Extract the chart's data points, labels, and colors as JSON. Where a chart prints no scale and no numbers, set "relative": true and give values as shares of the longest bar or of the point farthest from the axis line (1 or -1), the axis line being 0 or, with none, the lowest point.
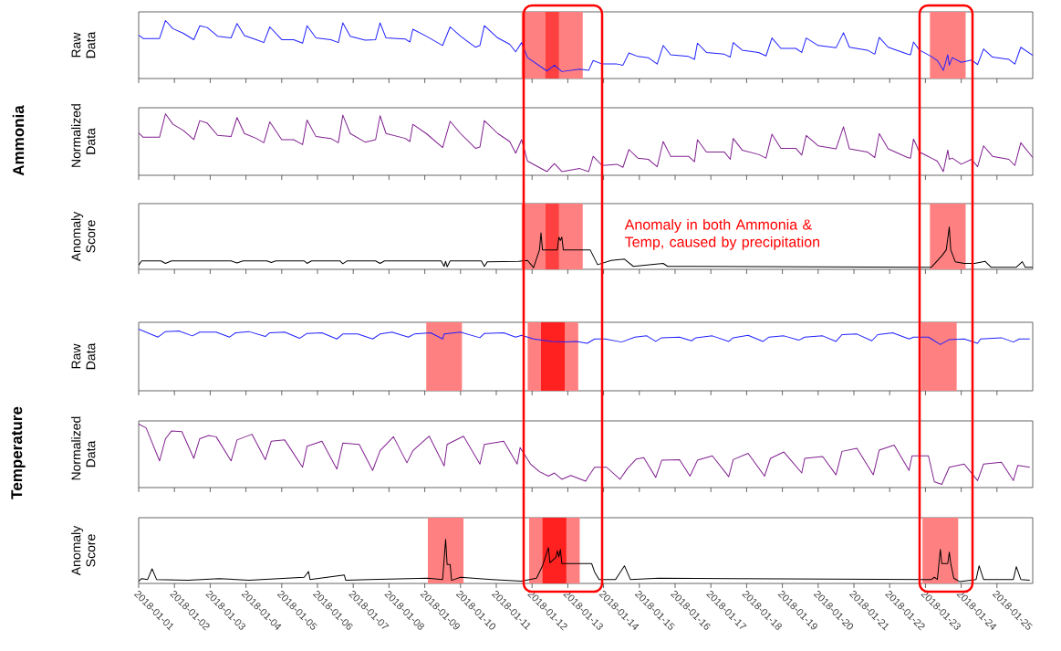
{
  "chart_data": [
    {
      "type": "other",
      "title": "Ammonia"
    },
    {
      "type": "line",
      "ylabel": "Raw Data",
      "color": "#2020ff",
      "relative": true,
      "tick_labels": false,
      "xlim": [
        "2018-01-01",
        "2018-01-26"
      ],
      "xticks": [
        "2018-01-01",
        "2018-01-02",
        "2018-01-03",
        "2018-01-04",
        "2018-01-05",
        "2018-01-06",
        "2018-01-07",
        "2018-01-08",
        "2018-01-09",
        "2018-01-10",
        "2018-01-11",
        "2018-01-12",
        "2018-01-13",
        "2018-01-14",
        "2018-01-15",
        "2018-01-16",
        "2018-01-17",
        "2018-01-18",
        "2018-01-19",
        "2018-01-20",
        "2018-01-21",
        "2018-01-22",
        "2018-01-23",
        "2018-01-24",
        "2018-01-25"
      ],
      "bands": [
        {
          "axis": "x",
          "from": "2018-01-11T17:00",
          "to": "2018-01-13T10:00",
          "color": "#ff8080"
        },
        {
          "axis": "x",
          "from": "2018-01-12T09:00",
          "to": "2018-01-12T18:00",
          "color": "#ff4040"
        },
        {
          "axis": "x",
          "from": "2018-01-23T03:00",
          "to": "2018-01-24T03:00",
          "color": "#ff8080"
        }
      ],
      "x": [
        "2018-01-01T00:00",
        "2018-01-01T03:00",
        "2018-01-01T14:00",
        "2018-01-01T18:00",
        "2018-01-01T23:00",
        "2018-01-02T06:00",
        "2018-01-02T13:00",
        "2018-01-02T17:00",
        "2018-01-02T22:00",
        "2018-01-03T05:00",
        "2018-01-03T14:00",
        "2018-01-03T18:00",
        "2018-01-03T23:00",
        "2018-01-04T07:00",
        "2018-01-04T12:00",
        "2018-01-04T16:00",
        "2018-01-05T00:00",
        "2018-01-05T08:00",
        "2018-01-05T14:00",
        "2018-01-05T17:00",
        "2018-01-05T23:00",
        "2018-01-06T09:00",
        "2018-01-06T14:00",
        "2018-01-06T17:00",
        "2018-01-06T22:00",
        "2018-01-07T08:00",
        "2018-01-07T15:00",
        "2018-01-07T18:00",
        "2018-01-07T22:00",
        "2018-01-08T11:00",
        "2018-01-08T14:00",
        "2018-01-08T16:00",
        "2018-01-09T01:00",
        "2018-01-09T12:00",
        "2018-01-09T17:00",
        "2018-01-10T00:00",
        "2018-01-10T10:00",
        "2018-01-10T13:00",
        "2018-01-10T16:00",
        "2018-01-11T01:00",
        "2018-01-11T09:00",
        "2018-01-11T13:00",
        "2018-01-11T17:00",
        "2018-01-11T21:00",
        "2018-01-12T10:00",
        "2018-01-12T15:00",
        "2018-01-12T20:00",
        "2018-01-13T08:00",
        "2018-01-13T14:00",
        "2018-01-13T17:00",
        "2018-01-13T23:00",
        "2018-01-14T09:00",
        "2018-01-14T13:00",
        "2018-01-14T17:00",
        "2018-01-14T23:00",
        "2018-01-15T06:00",
        "2018-01-15T12:00",
        "2018-01-15T16:00",
        "2018-01-15T21:00",
        "2018-01-16T09:00",
        "2018-01-16T13:00",
        "2018-01-16T15:00",
        "2018-01-16T21:00",
        "2018-01-17T09:00",
        "2018-01-17T13:00",
        "2018-01-17T15:00",
        "2018-01-17T21:00",
        "2018-01-18T08:00",
        "2018-01-18T13:00",
        "2018-01-18T17:00",
        "2018-01-18T23:00",
        "2018-01-19T09:00",
        "2018-01-19T13:00",
        "2018-01-19T16:00",
        "2018-01-20T00:00",
        "2018-01-20T12:00",
        "2018-01-20T17:00",
        "2018-01-20T21:00",
        "2018-01-21T09:00",
        "2018-01-21T14:00",
        "2018-01-21T17:00",
        "2018-01-21T23:00",
        "2018-01-22T12:00",
        "2018-01-22T14:00",
        "2018-01-22T16:00",
        "2018-01-22T20:00",
        "2018-01-23T04:00",
        "2018-01-23T08:00",
        "2018-01-23T12:00",
        "2018-01-23T15:00",
        "2018-01-23T16:00",
        "2018-01-23T18:00",
        "2018-01-24T00:00",
        "2018-01-24T07:00",
        "2018-01-24T11:00",
        "2018-01-24T15:00",
        "2018-01-24T21:00",
        "2018-01-25T08:00",
        "2018-01-25T12:00",
        "2018-01-25T16:00",
        "2018-01-26T00:00"
      ],
      "values": [
        0.75,
        0.69,
        0.69,
        1.0,
        0.86,
        0.78,
        0.67,
        0.91,
        0.88,
        0.73,
        0.7,
        0.95,
        0.74,
        0.67,
        0.62,
        0.89,
        0.67,
        0.67,
        0.61,
        0.91,
        0.7,
        0.67,
        0.62,
        0.96,
        0.73,
        0.66,
        0.67,
        0.96,
        0.7,
        0.68,
        0.63,
        0.85,
        0.73,
        0.57,
        0.89,
        0.73,
        0.54,
        0.57,
        0.91,
        0.7,
        0.59,
        0.46,
        0.62,
        0.36,
        0.13,
        0.23,
        0.12,
        0.16,
        0.14,
        0.31,
        0.25,
        0.25,
        0.23,
        0.44,
        0.38,
        0.36,
        0.25,
        0.57,
        0.41,
        0.38,
        0.33,
        0.61,
        0.45,
        0.42,
        0.37,
        0.62,
        0.49,
        0.45,
        0.39,
        0.7,
        0.52,
        0.52,
        0.45,
        0.7,
        0.57,
        0.53,
        0.79,
        0.54,
        0.49,
        0.42,
        0.71,
        0.54,
        0.42,
        0.41,
        0.63,
        0.49,
        0.38,
        0.31,
        0.14,
        0.41,
        0.23,
        0.36,
        0.28,
        0.32,
        0.24,
        0.51,
        0.37,
        0.33,
        0.25,
        0.54,
        0.4
      ]
    },
    {
      "type": "line",
      "ylabel": "Normalized Data",
      "color": "#80208f",
      "relative": true,
      "tick_labels": false,
      "xlim": [
        "2018-01-01",
        "2018-01-26"
      ],
      "xticks": [
        "2018-01-01",
        "2018-01-02",
        "2018-01-03",
        "2018-01-04",
        "2018-01-05",
        "2018-01-06",
        "2018-01-07",
        "2018-01-08",
        "2018-01-09",
        "2018-01-10",
        "2018-01-11",
        "2018-01-12",
        "2018-01-13",
        "2018-01-14",
        "2018-01-15",
        "2018-01-16",
        "2018-01-17",
        "2018-01-18",
        "2018-01-19",
        "2018-01-20",
        "2018-01-21",
        "2018-01-22",
        "2018-01-23",
        "2018-01-24",
        "2018-01-25"
      ],
      "x": [
        "2018-01-01T00:00",
        "2018-01-01T03:00",
        "2018-01-01T14:00",
        "2018-01-01T18:00",
        "2018-01-01T23:00",
        "2018-01-02T06:00",
        "2018-01-02T13:00",
        "2018-01-02T17:00",
        "2018-01-02T22:00",
        "2018-01-03T05:00",
        "2018-01-03T14:00",
        "2018-01-03T18:00",
        "2018-01-03T23:00",
        "2018-01-04T07:00",
        "2018-01-04T12:00",
        "2018-01-04T16:00",
        "2018-01-05T00:00",
        "2018-01-05T08:00",
        "2018-01-05T14:00",
        "2018-01-05T17:00",
        "2018-01-05T23:00",
        "2018-01-06T09:00",
        "2018-01-06T14:00",
        "2018-01-06T17:00",
        "2018-01-06T22:00",
        "2018-01-07T08:00",
        "2018-01-07T15:00",
        "2018-01-07T18:00",
        "2018-01-07T22:00",
        "2018-01-08T11:00",
        "2018-01-08T14:00",
        "2018-01-08T16:00",
        "2018-01-09T01:00",
        "2018-01-09T12:00",
        "2018-01-09T17:00",
        "2018-01-10T00:00",
        "2018-01-10T10:00",
        "2018-01-10T13:00",
        "2018-01-10T16:00",
        "2018-01-11T01:00",
        "2018-01-11T09:00",
        "2018-01-11T13:00",
        "2018-01-11T17:00",
        "2018-01-11T21:00",
        "2018-01-12T10:00",
        "2018-01-12T15:00",
        "2018-01-12T20:00",
        "2018-01-13T08:00",
        "2018-01-13T14:00",
        "2018-01-13T17:00",
        "2018-01-13T23:00",
        "2018-01-14T09:00",
        "2018-01-14T13:00",
        "2018-01-14T17:00",
        "2018-01-14T23:00",
        "2018-01-15T06:00",
        "2018-01-15T12:00",
        "2018-01-15T16:00",
        "2018-01-15T21:00",
        "2018-01-16T09:00",
        "2018-01-16T13:00",
        "2018-01-16T15:00",
        "2018-01-16T21:00",
        "2018-01-17T09:00",
        "2018-01-17T13:00",
        "2018-01-17T15:00",
        "2018-01-17T21:00",
        "2018-01-18T08:00",
        "2018-01-18T13:00",
        "2018-01-18T17:00",
        "2018-01-18T23:00",
        "2018-01-19T09:00",
        "2018-01-19T13:00",
        "2018-01-19T16:00",
        "2018-01-20T00:00",
        "2018-01-20T12:00",
        "2018-01-20T17:00",
        "2018-01-20T21:00",
        "2018-01-21T09:00",
        "2018-01-21T14:00",
        "2018-01-21T17:00",
        "2018-01-21T23:00",
        "2018-01-22T12:00",
        "2018-01-22T14:00",
        "2018-01-22T16:00",
        "2018-01-22T20:00",
        "2018-01-23T04:00",
        "2018-01-23T08:00",
        "2018-01-23T12:00",
        "2018-01-23T15:00",
        "2018-01-23T16:00",
        "2018-01-23T18:00",
        "2018-01-24T00:00",
        "2018-01-24T07:00",
        "2018-01-24T11:00",
        "2018-01-24T15:00",
        "2018-01-24T21:00",
        "2018-01-25T08:00",
        "2018-01-25T12:00",
        "2018-01-25T16:00",
        "2018-01-26T00:00"
      ],
      "values": [
        0.69,
        0.62,
        0.62,
        1.0,
        0.83,
        0.73,
        0.58,
        0.89,
        0.85,
        0.65,
        0.63,
        0.94,
        0.68,
        0.6,
        0.53,
        0.87,
        0.58,
        0.58,
        0.5,
        0.9,
        0.63,
        0.6,
        0.53,
        0.98,
        0.68,
        0.54,
        0.58,
        0.97,
        0.68,
        0.6,
        0.55,
        0.83,
        0.68,
        0.45,
        0.88,
        0.68,
        0.44,
        0.46,
        0.89,
        0.68,
        0.55,
        0.36,
        0.58,
        0.23,
        0.06,
        0.19,
        0.06,
        0.11,
        0.06,
        0.31,
        0.16,
        0.18,
        0.13,
        0.42,
        0.28,
        0.26,
        0.14,
        0.55,
        0.31,
        0.31,
        0.22,
        0.58,
        0.38,
        0.38,
        0.26,
        0.6,
        0.41,
        0.34,
        0.28,
        0.67,
        0.44,
        0.44,
        0.33,
        0.65,
        0.48,
        0.43,
        0.79,
        0.43,
        0.38,
        0.29,
        0.68,
        0.43,
        0.29,
        0.28,
        0.59,
        0.38,
        0.28,
        0.23,
        0.06,
        0.41,
        0.26,
        0.28,
        0.18,
        0.26,
        0.14,
        0.48,
        0.31,
        0.26,
        0.16,
        0.53,
        0.29
      ]
    },
    {
      "type": "line",
      "ylabel": "Anomaly Score",
      "color": "#000000",
      "relative": true,
      "tick_labels": false,
      "xlim": [
        "2018-01-01",
        "2018-01-26"
      ],
      "xticks": [
        "2018-01-01",
        "2018-01-02",
        "2018-01-03",
        "2018-01-04",
        "2018-01-05",
        "2018-01-06",
        "2018-01-07",
        "2018-01-08",
        "2018-01-09",
        "2018-01-10",
        "2018-01-11",
        "2018-01-12",
        "2018-01-13",
        "2018-01-14",
        "2018-01-15",
        "2018-01-16",
        "2018-01-17",
        "2018-01-18",
        "2018-01-19",
        "2018-01-20",
        "2018-01-21",
        "2018-01-22",
        "2018-01-23",
        "2018-01-24",
        "2018-01-25"
      ],
      "annotations": [
        "Anomaly in both Ammonia & Temp, caused by precipitation"
      ],
      "bands": [
        {
          "axis": "x",
          "from": "2018-01-11T17:00",
          "to": "2018-01-13T10:00",
          "color": "#ff8080"
        },
        {
          "axis": "x",
          "from": "2018-01-12T09:00",
          "to": "2018-01-12T18:00",
          "color": "#ff4040"
        },
        {
          "axis": "x",
          "from": "2018-01-23T03:00",
          "to": "2018-01-24T03:00",
          "color": "#ff8080"
        }
      ],
      "x": [
        "2018-01-01T00:00",
        "2018-01-01T02:00",
        "2018-01-01T15:00",
        "2018-01-01T18:00",
        "2018-01-01T22:00",
        "2018-01-03T14:00",
        "2018-01-03T18:00",
        "2018-01-03T22:00",
        "2018-01-04T14:00",
        "2018-01-04T17:00",
        "2018-01-04T20:00",
        "2018-01-05T15:00",
        "2018-01-05T17:00",
        "2018-01-05T20:00",
        "2018-01-06T15:00",
        "2018-01-06T17:00",
        "2018-01-06T20:00",
        "2018-01-07T15:00",
        "2018-01-07T18:00",
        "2018-01-07T21:00",
        "2018-01-09T11:00",
        "2018-01-09T13:00",
        "2018-01-09T14:00",
        "2018-01-09T15:00",
        "2018-01-09T17:00",
        "2018-01-10T14:00",
        "2018-01-10T16:00",
        "2018-01-10T18:00",
        "2018-01-11T15:00",
        "2018-01-11T21:00",
        "2018-01-12T01:00",
        "2018-01-12T05:00",
        "2018-01-12T06:00",
        "2018-01-12T07:00",
        "2018-01-12T17:00",
        "2018-01-12T18:00",
        "2018-01-12T19:00",
        "2018-01-12T20:00",
        "2018-01-12T21:00",
        "2018-01-13T15:00",
        "2018-01-13T20:00",
        "2018-01-14T05:00",
        "2018-01-14T14:00",
        "2018-01-14T20:00",
        "2018-01-15T16:00",
        "2018-01-15T19:00",
        "2018-01-23T04:00",
        "2018-01-23T11:00",
        "2018-01-23T14:00",
        "2018-01-23T16:00",
        "2018-01-23T17:00",
        "2018-01-23T20:00",
        "2018-01-24T02:00",
        "2018-01-24T09:00",
        "2018-01-24T16:00",
        "2018-01-24T20:00",
        "2018-01-25T13:00",
        "2018-01-25T17:00",
        "2018-01-25T19:00",
        "2018-01-26T00:00"
      ],
      "values": [
        0.1,
        0.2,
        0.2,
        0.14,
        0.2,
        0.2,
        0.15,
        0.2,
        0.2,
        0.16,
        0.2,
        0.2,
        0.14,
        0.2,
        0.2,
        0.13,
        0.2,
        0.2,
        0.14,
        0.2,
        0.2,
        0.07,
        0.19,
        0.06,
        0.2,
        0.2,
        0.07,
        0.18,
        0.19,
        0.21,
        0.04,
        0.46,
        0.86,
        0.46,
        0.46,
        0.76,
        0.68,
        0.76,
        0.46,
        0.46,
        0.11,
        0.21,
        0.24,
        0.07,
        0.14,
        0.07,
        0.05,
        0.32,
        0.46,
        1.0,
        0.46,
        0.18,
        0.14,
        0.14,
        0.19,
        0.05,
        0.05,
        0.18,
        0.05,
        0.05
      ]
    },
    {
      "type": "other",
      "title": "Temperature"
    },
    {
      "type": "line",
      "ylabel": "Raw Data",
      "color": "#2020ff",
      "relative": true,
      "tick_labels": false,
      "xlim": [
        "2018-01-01",
        "2018-01-26"
      ],
      "xticks": [
        "2018-01-01",
        "2018-01-02",
        "2018-01-03",
        "2018-01-04",
        "2018-01-05",
        "2018-01-06",
        "2018-01-07",
        "2018-01-08",
        "2018-01-09",
        "2018-01-10",
        "2018-01-11",
        "2018-01-12",
        "2018-01-13",
        "2018-01-14",
        "2018-01-15",
        "2018-01-16",
        "2018-01-17",
        "2018-01-18",
        "2018-01-19",
        "2018-01-20",
        "2018-01-21",
        "2018-01-22",
        "2018-01-23",
        "2018-01-24",
        "2018-01-25"
      ],
      "bands": [
        {
          "axis": "x",
          "from": "2018-01-09T01:00",
          "to": "2018-01-10T01:00",
          "color": "#ff8080"
        },
        {
          "axis": "x",
          "from": "2018-01-11T21:00",
          "to": "2018-01-13T07:00",
          "color": "#ff8080"
        },
        {
          "axis": "x",
          "from": "2018-01-12T06:00",
          "to": "2018-01-12T22:00",
          "color": "#ff2020"
        },
        {
          "axis": "x",
          "from": "2018-01-22T21:00",
          "to": "2018-01-23T21:00",
          "color": "#ff8080"
        }
      ],
      "x": [
        "2018-01-01T00:00",
        "2018-01-01T13:00",
        "2018-01-01T18:00",
        "2018-01-02T03:00",
        "2018-01-02T12:00",
        "2018-01-02T17:00",
        "2018-01-03T04:00",
        "2018-01-03T13:00",
        "2018-01-03T17:00",
        "2018-01-04T02:00",
        "2018-01-04T13:00",
        "2018-01-04T16:00",
        "2018-01-05T02:00",
        "2018-01-05T12:00",
        "2018-01-05T17:00",
        "2018-01-06T03:00",
        "2018-01-06T13:00",
        "2018-01-06T17:00",
        "2018-01-07T03:00",
        "2018-01-07T13:00",
        "2018-01-07T18:00",
        "2018-01-08T02:00",
        "2018-01-08T13:00",
        "2018-01-08T17:00",
        "2018-01-09T04:00",
        "2018-01-09T12:00",
        "2018-01-09T13:00",
        "2018-01-10T00:00",
        "2018-01-10T13:00",
        "2018-01-10T16:00",
        "2018-01-11T05:00",
        "2018-01-11T13:00",
        "2018-01-11T17:00",
        "2018-01-12T01:00",
        "2018-01-12T13:00",
        "2018-01-12T22:00",
        "2018-01-13T06:00",
        "2018-01-13T13:00",
        "2018-01-13T18:00",
        "2018-01-14T01:00",
        "2018-01-14T12:00",
        "2018-01-14T21:00",
        "2018-01-15T05:00",
        "2018-01-15T11:00",
        "2018-01-15T15:00",
        "2018-01-16T03:00",
        "2018-01-16T11:00",
        "2018-01-16T14:00",
        "2018-01-17T01:00",
        "2018-01-17T12:00",
        "2018-01-17T15:00",
        "2018-01-18T01:00",
        "2018-01-18T11:00",
        "2018-01-18T15:00",
        "2018-01-19T01:00",
        "2018-01-19T11:00",
        "2018-01-19T15:00",
        "2018-01-20T03:00",
        "2018-01-20T12:00",
        "2018-01-20T16:00",
        "2018-01-21T02:00",
        "2018-01-21T12:00",
        "2018-01-21T16:00",
        "2018-01-22T02:00",
        "2018-01-22T13:00",
        "2018-01-22T16:00",
        "2018-01-23T02:00",
        "2018-01-23T10:00",
        "2018-01-23T16:00",
        "2018-01-24T02:00",
        "2018-01-24T11:00",
        "2018-01-24T13:00",
        "2018-01-25T03:00",
        "2018-01-25T11:00",
        "2018-01-25T15:00",
        "2018-01-25T22:00"
      ],
      "values": [
        1.0,
        0.87,
        0.96,
        0.97,
        0.89,
        0.95,
        0.95,
        0.87,
        0.94,
        0.96,
        0.88,
        0.94,
        0.95,
        0.85,
        0.93,
        0.94,
        0.84,
        0.92,
        0.92,
        0.84,
        0.92,
        0.95,
        0.87,
        0.92,
        0.94,
        0.84,
        0.92,
        0.95,
        0.86,
        0.93,
        0.94,
        0.87,
        0.9,
        0.84,
        0.8,
        0.79,
        0.8,
        0.77,
        0.84,
        0.84,
        0.79,
        0.87,
        0.89,
        0.8,
        0.86,
        0.87,
        0.81,
        0.86,
        0.89,
        0.8,
        0.86,
        0.9,
        0.8,
        0.87,
        0.89,
        0.82,
        0.87,
        0.89,
        0.8,
        0.91,
        0.92,
        0.81,
        0.91,
        0.94,
        0.84,
        0.87,
        0.87,
        0.75,
        0.83,
        0.84,
        0.77,
        0.84,
        0.86,
        0.79,
        0.84,
        0.84
      ]
    },
    {
      "type": "line",
      "ylabel": "Normalized Data",
      "color": "#80208f",
      "relative": true,
      "tick_labels": false,
      "xlim": [
        "2018-01-01",
        "2018-01-26"
      ],
      "xticks": [
        "2018-01-01",
        "2018-01-02",
        "2018-01-03",
        "2018-01-04",
        "2018-01-05",
        "2018-01-06",
        "2018-01-07",
        "2018-01-08",
        "2018-01-09",
        "2018-01-10",
        "2018-01-11",
        "2018-01-12",
        "2018-01-13",
        "2018-01-14",
        "2018-01-15",
        "2018-01-16",
        "2018-01-17",
        "2018-01-18",
        "2018-01-19",
        "2018-01-20",
        "2018-01-21",
        "2018-01-22",
        "2018-01-23",
        "2018-01-24",
        "2018-01-25"
      ],
      "x": [
        "2018-01-01T00:00",
        "2018-01-01T05:00",
        "2018-01-01T14:00",
        "2018-01-01T18:00",
        "2018-01-01T22:00",
        "2018-01-02T05:00",
        "2018-01-02T13:00",
        "2018-01-02T17:00",
        "2018-01-02T23:00",
        "2018-01-03T04:00",
        "2018-01-03T14:00",
        "2018-01-03T18:00",
        "2018-01-04T04:00",
        "2018-01-04T13:00",
        "2018-01-04T17:00",
        "2018-01-05T02:00",
        "2018-01-05T14:00",
        "2018-01-05T17:00",
        "2018-01-06T03:00",
        "2018-01-06T13:00",
        "2018-01-06T17:00",
        "2018-01-07T04:00",
        "2018-01-07T13:00",
        "2018-01-07T18:00",
        "2018-01-08T03:00",
        "2018-01-08T12:00",
        "2018-01-08T16:00",
        "2018-01-09T03:00",
        "2018-01-09T13:00",
        "2018-01-09T15:00",
        "2018-01-10T02:00",
        "2018-01-10T13:00",
        "2018-01-10T16:00",
        "2018-01-11T05:00",
        "2018-01-11T14:00",
        "2018-01-11T16:00",
        "2018-01-11T23:00",
        "2018-01-12T05:00",
        "2018-01-12T11:00",
        "2018-01-12T15:00",
        "2018-01-12T20:00",
        "2018-01-13T02:00",
        "2018-01-13T12:00",
        "2018-01-13T14:00",
        "2018-01-13T18:00",
        "2018-01-14T02:00",
        "2018-01-14T11:00",
        "2018-01-14T16:00",
        "2018-01-14T22:00",
        "2018-01-15T03:00",
        "2018-01-15T11:00",
        "2018-01-15T15:00",
        "2018-01-16T03:00",
        "2018-01-16T10:00",
        "2018-01-16T15:00",
        "2018-01-17T01:00",
        "2018-01-17T12:00",
        "2018-01-17T15:00",
        "2018-01-18T01:00",
        "2018-01-18T12:00",
        "2018-01-18T16:00",
        "2018-01-19T01:00",
        "2018-01-19T13:00",
        "2018-01-19T15:00",
        "2018-01-20T03:00",
        "2018-01-20T12:00",
        "2018-01-20T16:00",
        "2018-01-21T02:00",
        "2018-01-21T13:00",
        "2018-01-21T17:00",
        "2018-01-22T03:00",
        "2018-01-22T13:00",
        "2018-01-22T15:00",
        "2018-01-23T02:00",
        "2018-01-23T06:00",
        "2018-01-23T11:00",
        "2018-01-23T16:00",
        "2018-01-24T02:00",
        "2018-01-24T11:00",
        "2018-01-24T15:00",
        "2018-01-25T03:00",
        "2018-01-25T11:00",
        "2018-01-25T14:00",
        "2018-01-25T22:00"
      ],
      "values": [
        1.0,
        0.94,
        0.42,
        0.77,
        0.89,
        0.88,
        0.46,
        0.77,
        0.82,
        0.8,
        0.42,
        0.75,
        0.84,
        0.44,
        0.73,
        0.75,
        0.32,
        0.65,
        0.73,
        0.29,
        0.7,
        0.68,
        0.27,
        0.58,
        0.8,
        0.39,
        0.58,
        0.81,
        0.34,
        0.68,
        0.81,
        0.37,
        0.68,
        0.73,
        0.37,
        0.63,
        0.37,
        0.25,
        0.18,
        0.23,
        0.13,
        0.19,
        0.1,
        0.18,
        0.32,
        0.32,
        0.13,
        0.3,
        0.45,
        0.47,
        0.16,
        0.43,
        0.44,
        0.18,
        0.43,
        0.5,
        0.17,
        0.44,
        0.54,
        0.18,
        0.46,
        0.56,
        0.23,
        0.46,
        0.49,
        0.2,
        0.57,
        0.62,
        0.2,
        0.59,
        0.67,
        0.27,
        0.5,
        0.5,
        0.09,
        0.05,
        0.32,
        0.37,
        0.11,
        0.37,
        0.4,
        0.11,
        0.35,
        0.32
      ]
    },
    {
      "type": "line",
      "ylabel": "Anomaly Score",
      "color": "#000000",
      "relative": true,
      "tick_labels": "x",
      "xlim": [
        "2018-01-01",
        "2018-01-26"
      ],
      "xticks": [
        "2018-01-01",
        "2018-01-02",
        "2018-01-03",
        "2018-01-04",
        "2018-01-05",
        "2018-01-06",
        "2018-01-07",
        "2018-01-08",
        "2018-01-09",
        "2018-01-10",
        "2018-01-11",
        "2018-01-12",
        "2018-01-13",
        "2018-01-14",
        "2018-01-15",
        "2018-01-16",
        "2018-01-17",
        "2018-01-18",
        "2018-01-19",
        "2018-01-20",
        "2018-01-21",
        "2018-01-22",
        "2018-01-23",
        "2018-01-24",
        "2018-01-25"
      ],
      "bands": [
        {
          "axis": "x",
          "from": "2018-01-09T02:00",
          "to": "2018-01-10T02:00",
          "color": "#ff8080"
        },
        {
          "axis": "x",
          "from": "2018-01-11T22:00",
          "to": "2018-01-13T08:00",
          "color": "#ff8080"
        },
        {
          "axis": "x",
          "from": "2018-01-12T07:00",
          "to": "2018-01-12T23:00",
          "color": "#ff2020"
        },
        {
          "axis": "x",
          "from": "2018-01-22T22:00",
          "to": "2018-01-23T22:00",
          "color": "#ff8080"
        }
      ],
      "x": [
        "2018-01-01T00:00",
        "2018-01-01T02:00",
        "2018-01-01T06:00",
        "2018-01-01T09:00",
        "2018-01-01T12:00",
        "2018-01-02T09:00",
        "2018-01-03T06:00",
        "2018-01-04T02:00",
        "2018-01-05T15:00",
        "2018-01-05T18:00",
        "2018-01-05T19:00",
        "2018-01-06T18:00",
        "2018-01-06T19:00",
        "2018-01-07T11:00",
        "2018-01-09T02:00",
        "2018-01-09T12:00",
        "2018-01-09T14:00",
        "2018-01-09T15:00",
        "2018-01-09T17:00",
        "2018-01-09T18:00",
        "2018-01-10T00:00",
        "2018-01-10T21:00",
        "2018-01-11T17:00",
        "2018-01-12T03:00",
        "2018-01-12T07:00",
        "2018-01-12T11:00",
        "2018-01-12T12:00",
        "2018-01-12T16:00",
        "2018-01-12T17:00",
        "2018-01-12T18:00",
        "2018-01-12T19:00",
        "2018-01-12T20:00",
        "2018-01-13T16:00",
        "2018-01-13T18:00",
        "2018-01-13T21:00",
        "2018-01-14T08:00",
        "2018-01-14T14:00",
        "2018-01-14T18:00",
        "2018-01-15T13:00",
        "2018-01-17T16:00",
        "2018-01-23T04:00",
        "2018-01-23T06:00",
        "2018-01-23T08:00",
        "2018-01-23T10:00",
        "2018-01-23T11:00",
        "2018-01-23T15:00",
        "2018-01-23T16:00",
        "2018-01-23T17:00",
        "2018-01-23T19:00",
        "2018-01-23T23:00",
        "2018-01-24T10:00",
        "2018-01-24T12:00",
        "2018-01-24T15:00",
        "2018-01-25T11:00",
        "2018-01-25T13:00",
        "2018-01-25T16:00",
        "2018-01-25T22:00"
      ],
      "values": [
        0.05,
        0.11,
        0.09,
        0.33,
        0.09,
        0.07,
        0.11,
        0.07,
        0.14,
        0.27,
        0.09,
        0.19,
        0.07,
        0.09,
        0.12,
        0.09,
        1.0,
        0.43,
        0.43,
        0.07,
        0.14,
        0.09,
        0.05,
        0.12,
        0.4,
        0.81,
        0.47,
        0.59,
        0.74,
        0.6,
        0.77,
        0.45,
        0.45,
        0.26,
        0.09,
        0.09,
        0.4,
        0.09,
        0.12,
        0.11,
        0.09,
        0.14,
        0.09,
        0.77,
        0.45,
        0.45,
        0.71,
        0.45,
        0.12,
        0.04,
        0.09,
        0.4,
        0.09,
        0.09,
        0.38,
        0.09,
        0.07
      ]
    }
  ]
}
